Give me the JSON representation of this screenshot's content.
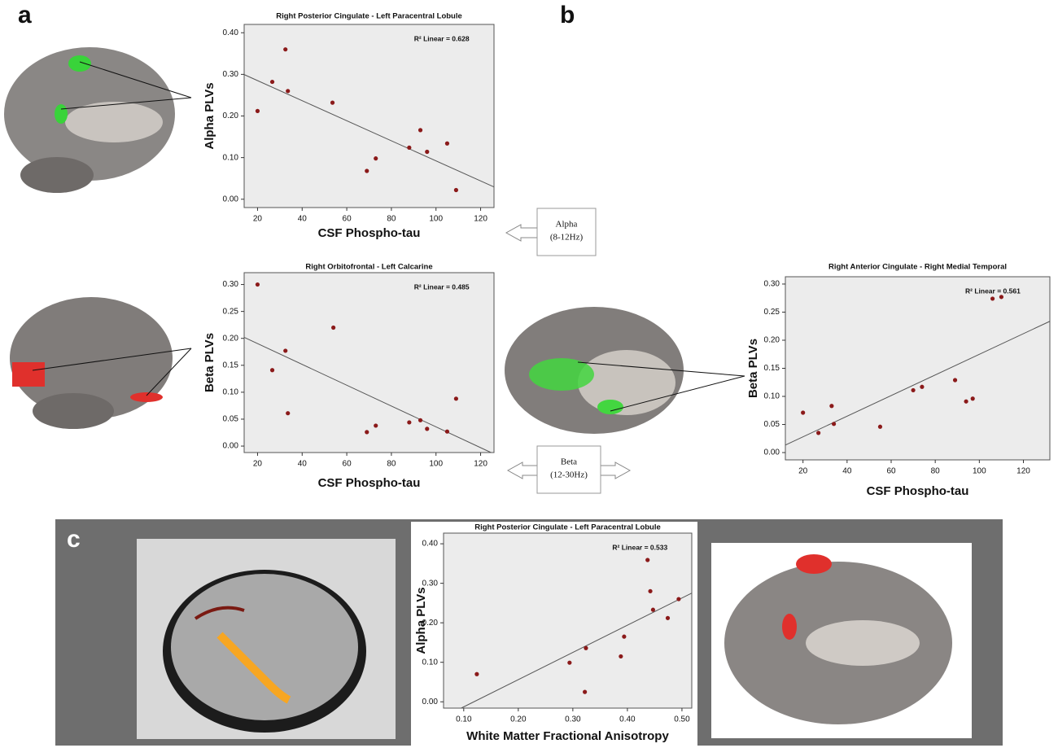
{
  "panel_labels": [
    "a",
    "b",
    "c"
  ],
  "band_boxes": [
    {
      "name": "Alpha",
      "range": "(8-12Hz)"
    },
    {
      "name": "Beta",
      "range": "(12-30Hz)"
    }
  ],
  "chart_data": [
    {
      "type": "scatter",
      "title": "Right Posterior Cingulate - Left Paracentral Lobule",
      "annotation": "R² Linear = 0.628",
      "x_label": "CSF Phospho-tau",
      "y_label": "Alpha PLVs",
      "color": "#8b1a1a",
      "fit_line": true,
      "x": [
        20,
        26.6,
        32.5,
        33.6,
        53.6,
        69,
        73,
        88,
        93,
        96,
        105,
        109
      ],
      "values": [
        0.212,
        0.282,
        0.36,
        0.26,
        0.232,
        0.068,
        0.098,
        0.124,
        0.166,
        0.114,
        0.134,
        0.022
      ],
      "xlim": [
        14,
        126
      ],
      "xticks": [
        20,
        40,
        60,
        80,
        100,
        120
      ],
      "ylim": [
        -0.02,
        0.42
      ],
      "yticks": [
        {
          "value": 0,
          "label": "0.00"
        },
        {
          "value": 0.1,
          "label": "0.10"
        },
        {
          "value": 0.2,
          "label": "0.20"
        },
        {
          "value": 0.3,
          "label": "0.30"
        },
        {
          "value": 0.4,
          "label": "0.40"
        }
      ]
    },
    {
      "type": "scatter",
      "title": "Right Orbitofrontal - Left Calcarine",
      "annotation": "R² Linear = 0.485",
      "x_label": "CSF Phospho-tau",
      "y_label": "Beta PLVs",
      "color": "#8b1a1a",
      "fit_line": true,
      "x": [
        20,
        26.6,
        32.5,
        33.6,
        54,
        69,
        73,
        88,
        93,
        96,
        105,
        109
      ],
      "values": [
        0.3,
        0.141,
        0.177,
        0.061,
        0.22,
        0.026,
        0.038,
        0.044,
        0.048,
        0.032,
        0.027,
        0.088
      ],
      "xlim": [
        14,
        126
      ],
      "xticks": [
        20,
        40,
        60,
        80,
        100,
        120
      ],
      "ylim": [
        -0.012,
        0.322
      ],
      "yticks": [
        {
          "value": 0,
          "label": "0.00"
        },
        {
          "value": 0.05,
          "label": "0.05"
        },
        {
          "value": 0.1,
          "label": "0.10"
        },
        {
          "value": 0.15,
          "label": "0.15"
        },
        {
          "value": 0.2,
          "label": "0.20"
        },
        {
          "value": 0.25,
          "label": "0.25"
        },
        {
          "value": 0.3,
          "label": "0.30"
        }
      ]
    },
    {
      "type": "scatter",
      "title": "Right Anterior Cingulate - Right Medial Temporal",
      "annotation": "R² Linear = 0.561",
      "x_label": "CSF Phospho-tau",
      "y_label": "Beta PLVs",
      "color": "#8b1a1a",
      "fit_line": true,
      "x": [
        20,
        27,
        33,
        34,
        55,
        70,
        74,
        89,
        94,
        97,
        106,
        110
      ],
      "values": [
        0.071,
        0.035,
        0.083,
        0.051,
        0.046,
        0.111,
        0.117,
        0.129,
        0.091,
        0.096,
        0.274,
        0.277
      ],
      "xlim": [
        12,
        132
      ],
      "xticks": [
        20,
        40,
        60,
        80,
        100,
        120
      ],
      "ylim": [
        -0.013,
        0.313
      ],
      "yticks": [
        {
          "value": 0,
          "label": "0.00"
        },
        {
          "value": 0.05,
          "label": "0.05"
        },
        {
          "value": 0.1,
          "label": "0.10"
        },
        {
          "value": 0.15,
          "label": "0.15"
        },
        {
          "value": 0.2,
          "label": "0.20"
        },
        {
          "value": 0.25,
          "label": "0.25"
        },
        {
          "value": 0.3,
          "label": "0.30"
        }
      ]
    },
    {
      "type": "scatter",
      "title": "Right Posterior Cingulate - Left Paracentral Lobule",
      "annotation": "R² Linear = 0.533",
      "x_label": "White Matter Fractional Anisotropy",
      "y_label": "Alpha PLVs",
      "color": "#8b1a1a",
      "fit_line": true,
      "x": [
        0.124,
        0.294,
        0.324,
        0.322,
        0.388,
        0.394,
        0.437,
        0.442,
        0.447,
        0.474,
        0.494
      ],
      "values": [
        0.07,
        0.099,
        0.136,
        0.025,
        0.115,
        0.165,
        0.359,
        0.28,
        0.233,
        0.212,
        0.26
      ],
      "xlim": [
        0.063,
        0.518
      ],
      "xticks": [
        {
          "value": 0.1,
          "label": "0.10"
        },
        {
          "value": 0.2,
          "label": "0.20"
        },
        {
          "value": 0.3,
          "label": "0.30"
        },
        {
          "value": 0.4,
          "label": "0.40"
        },
        {
          "value": 0.5,
          "label": "0.50"
        }
      ],
      "ylim": [
        -0.016,
        0.427
      ],
      "yticks": [
        {
          "value": 0,
          "label": "0.00"
        },
        {
          "value": 0.1,
          "label": "0.10"
        },
        {
          "value": 0.2,
          "label": "0.20"
        },
        {
          "value": 0.3,
          "label": "0.30"
        },
        {
          "value": 0.4,
          "label": "0.40"
        }
      ]
    }
  ]
}
